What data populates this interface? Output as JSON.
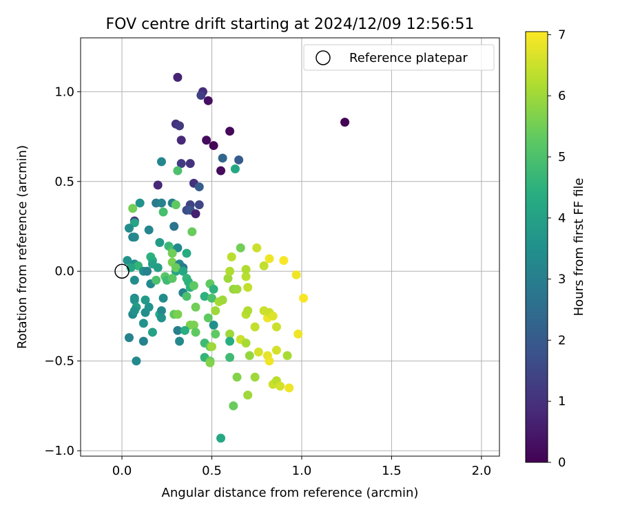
{
  "chart_data": {
    "type": "scatter",
    "title": "FOV centre drift starting at 2024/12/09 12:56:51",
    "xlabel": "Angular distance from reference (arcmin)",
    "ylabel": "Rotation from reference (arcmin)",
    "xlim": [
      -0.23,
      2.1
    ],
    "ylim": [
      -1.03,
      1.3
    ],
    "xticks": [
      0.0,
      0.5,
      1.0,
      1.5,
      2.0
    ],
    "xtick_labels": [
      "0.0",
      "0.5",
      "1.0",
      "1.5",
      "2.0"
    ],
    "yticks": [
      -1.0,
      -0.5,
      0.0,
      0.5,
      1.0
    ],
    "ytick_labels": [
      "−1.0",
      "−0.5",
      "0.0",
      "0.5",
      "1.0"
    ],
    "grid": true,
    "legend": {
      "placement": "top-right",
      "entries": [
        "Reference platepar"
      ]
    },
    "reference_marker": {
      "label": "Reference platepar",
      "x": 0.0,
      "y": 0.0
    },
    "colorbar": {
      "label": "Hours from first FF file",
      "colormap": "viridis",
      "range": [
        0,
        7.05
      ],
      "ticks": [
        0,
        1,
        2,
        3,
        4,
        5,
        6,
        7
      ],
      "tick_labels": [
        "0",
        "1",
        "2",
        "3",
        "4",
        "5",
        "6",
        "7"
      ]
    },
    "points": [
      [
        0.31,
        1.08,
        0.7
      ],
      [
        0.45,
        1.0,
        0.9
      ],
      [
        0.44,
        0.98,
        1.3
      ],
      [
        0.48,
        0.95,
        0.3
      ],
      [
        0.6,
        0.78,
        0.15
      ],
      [
        1.24,
        0.83,
        0.05
      ],
      [
        0.3,
        0.82,
        1.0
      ],
      [
        0.32,
        0.81,
        1.2
      ],
      [
        0.33,
        0.73,
        0.8
      ],
      [
        0.47,
        0.73,
        0.2
      ],
      [
        0.51,
        0.7,
        0.1
      ],
      [
        0.56,
        0.63,
        2.3
      ],
      [
        0.65,
        0.62,
        2.0
      ],
      [
        0.22,
        0.61,
        3.2
      ],
      [
        0.33,
        0.6,
        1.2
      ],
      [
        0.38,
        0.6,
        1.0
      ],
      [
        0.31,
        0.56,
        5.0
      ],
      [
        0.55,
        0.56,
        0.2
      ],
      [
        0.63,
        0.57,
        4.2
      ],
      [
        0.2,
        0.48,
        0.8
      ],
      [
        0.4,
        0.49,
        1.0
      ],
      [
        0.43,
        0.47,
        2.1
      ],
      [
        0.1,
        0.38,
        3.6
      ],
      [
        0.19,
        0.38,
        2.9
      ],
      [
        0.22,
        0.38,
        3.1
      ],
      [
        0.28,
        0.38,
        3.0
      ],
      [
        0.3,
        0.37,
        5.3
      ],
      [
        0.38,
        0.37,
        1.4
      ],
      [
        0.43,
        0.37,
        1.5
      ],
      [
        0.06,
        0.35,
        5.5
      ],
      [
        0.23,
        0.33,
        4.9
      ],
      [
        0.36,
        0.34,
        1.6
      ],
      [
        0.38,
        0.34,
        1.8
      ],
      [
        0.41,
        0.32,
        0.6
      ],
      [
        0.07,
        0.28,
        1.0
      ],
      [
        0.07,
        0.27,
        4.1
      ],
      [
        0.04,
        0.24,
        3.4
      ],
      [
        0.15,
        0.23,
        3.2
      ],
      [
        0.29,
        0.25,
        2.7
      ],
      [
        0.39,
        0.22,
        5.4
      ],
      [
        0.06,
        0.19,
        3.1
      ],
      [
        0.07,
        0.19,
        3.3
      ],
      [
        0.21,
        0.16,
        3.8
      ],
      [
        0.26,
        0.14,
        4.7
      ],
      [
        0.28,
        0.12,
        4.9
      ],
      [
        0.31,
        0.13,
        3.3
      ],
      [
        0.28,
        0.1,
        5.5
      ],
      [
        0.36,
        0.1,
        4.3
      ],
      [
        0.16,
        0.08,
        4.5
      ],
      [
        0.17,
        0.06,
        4.4
      ],
      [
        0.28,
        0.05,
        5.6
      ],
      [
        0.32,
        0.04,
        3.2
      ],
      [
        0.03,
        0.06,
        3.6
      ],
      [
        0.07,
        0.04,
        3.4
      ],
      [
        0.09,
        0.03,
        4.6
      ],
      [
        0.17,
        0.04,
        4.0
      ],
      [
        0.2,
        0.02,
        3.9
      ],
      [
        0.3,
        0.0,
        4.1
      ],
      [
        0.34,
        0.02,
        2.9
      ],
      [
        0.05,
        0.02,
        4.1
      ],
      [
        0.12,
        0.0,
        3.4
      ],
      [
        0.14,
        0.0,
        3.1
      ],
      [
        0.3,
        0.02,
        5.4
      ],
      [
        0.34,
        0.0,
        4.2
      ],
      [
        0.07,
        -0.05,
        3.4
      ],
      [
        0.16,
        -0.07,
        3.3
      ],
      [
        0.19,
        -0.05,
        5.0
      ],
      [
        0.24,
        -0.03,
        5.2
      ],
      [
        0.25,
        -0.05,
        4.8
      ],
      [
        0.28,
        -0.04,
        5.2
      ],
      [
        0.36,
        -0.04,
        4.6
      ],
      [
        0.37,
        -0.06,
        4.5
      ],
      [
        0.38,
        -0.09,
        4.5
      ],
      [
        0.4,
        -0.08,
        5.3
      ],
      [
        0.49,
        -0.07,
        5.3
      ],
      [
        0.51,
        -0.1,
        4.5
      ],
      [
        0.59,
        -0.04,
        6.0
      ],
      [
        0.62,
        -0.1,
        5.9
      ],
      [
        0.64,
        -0.1,
        6.0
      ],
      [
        0.69,
        -0.03,
        6.3
      ],
      [
        0.7,
        -0.09,
        6.4
      ],
      [
        0.6,
        0.0,
        6.2
      ],
      [
        0.66,
        0.13,
        5.5
      ],
      [
        0.69,
        0.01,
        6.2
      ],
      [
        0.75,
        0.13,
        6.5
      ],
      [
        0.79,
        0.03,
        6.4
      ],
      [
        0.82,
        0.07,
        6.9
      ],
      [
        0.9,
        0.06,
        7.0
      ],
      [
        0.61,
        0.08,
        6.3
      ],
      [
        0.97,
        -0.02,
        6.9
      ],
      [
        1.01,
        -0.15,
        7.0
      ],
      [
        0.07,
        -0.15,
        3.4
      ],
      [
        0.07,
        -0.16,
        3.6
      ],
      [
        0.08,
        -0.2,
        3.9
      ],
      [
        0.13,
        -0.16,
        3.8
      ],
      [
        0.23,
        -0.15,
        3.4
      ],
      [
        0.34,
        -0.12,
        3.1
      ],
      [
        0.36,
        -0.14,
        5.0
      ],
      [
        0.41,
        -0.2,
        5.5
      ],
      [
        0.46,
        -0.14,
        4.5
      ],
      [
        0.5,
        -0.15,
        5.0
      ],
      [
        0.54,
        -0.17,
        6.1
      ],
      [
        0.56,
        -0.16,
        6.0
      ],
      [
        0.52,
        -0.22,
        6.0
      ],
      [
        0.48,
        -0.26,
        5.3
      ],
      [
        0.51,
        -0.3,
        3.5
      ],
      [
        0.06,
        -0.24,
        3.3
      ],
      [
        0.07,
        -0.22,
        3.6
      ],
      [
        0.13,
        -0.23,
        3.4
      ],
      [
        0.15,
        -0.2,
        3.6
      ],
      [
        0.21,
        -0.24,
        4.3
      ],
      [
        0.22,
        -0.22,
        3.3
      ],
      [
        0.22,
        -0.26,
        3.6
      ],
      [
        0.29,
        -0.24,
        5.3
      ],
      [
        0.31,
        -0.24,
        5.6
      ],
      [
        0.38,
        -0.3,
        5.6
      ],
      [
        0.4,
        -0.3,
        5.6
      ],
      [
        0.41,
        -0.34,
        5.3
      ],
      [
        0.52,
        -0.35,
        5.3
      ],
      [
        0.6,
        -0.35,
        6.0
      ],
      [
        0.69,
        -0.24,
        6.3
      ],
      [
        0.7,
        -0.22,
        6.2
      ],
      [
        0.74,
        -0.31,
        6.4
      ],
      [
        0.79,
        -0.22,
        6.5
      ],
      [
        0.81,
        -0.26,
        6.9
      ],
      [
        0.82,
        -0.23,
        6.5
      ],
      [
        0.84,
        -0.25,
        6.7
      ],
      [
        0.86,
        -0.31,
        6.5
      ],
      [
        0.12,
        -0.29,
        3.6
      ],
      [
        0.17,
        -0.34,
        4.0
      ],
      [
        0.31,
        -0.33,
        3.0
      ],
      [
        0.35,
        -0.33,
        4.4
      ],
      [
        0.04,
        -0.37,
        3.1
      ],
      [
        0.12,
        -0.39,
        3.1
      ],
      [
        0.32,
        -0.39,
        3.3
      ],
      [
        0.46,
        -0.4,
        4.8
      ],
      [
        0.49,
        -0.42,
        5.3
      ],
      [
        0.5,
        -0.42,
        6.0
      ],
      [
        0.6,
        -0.39,
        4.4
      ],
      [
        0.66,
        -0.38,
        6.5
      ],
      [
        0.69,
        -0.4,
        6.1
      ],
      [
        0.76,
        -0.45,
        6.6
      ],
      [
        0.81,
        -0.47,
        6.8
      ],
      [
        0.86,
        -0.44,
        6.6
      ],
      [
        0.92,
        -0.47,
        6.1
      ],
      [
        0.98,
        -0.35,
        6.9
      ],
      [
        0.08,
        -0.5,
        3.3
      ],
      [
        0.46,
        -0.48,
        4.6
      ],
      [
        0.49,
        -0.5,
        5.3
      ],
      [
        0.49,
        -0.51,
        5.7
      ],
      [
        0.6,
        -0.48,
        4.8
      ],
      [
        0.71,
        -0.47,
        5.9
      ],
      [
        0.82,
        -0.5,
        6.9
      ],
      [
        0.64,
        -0.59,
        5.7
      ],
      [
        0.74,
        -0.59,
        6.0
      ],
      [
        0.84,
        -0.63,
        6.5
      ],
      [
        0.86,
        -0.61,
        6.3
      ],
      [
        0.88,
        -0.64,
        6.6
      ],
      [
        0.93,
        -0.65,
        6.9
      ],
      [
        0.7,
        -0.69,
        6.0
      ],
      [
        0.62,
        -0.75,
        5.4
      ],
      [
        0.55,
        -0.93,
        4.2
      ]
    ]
  }
}
